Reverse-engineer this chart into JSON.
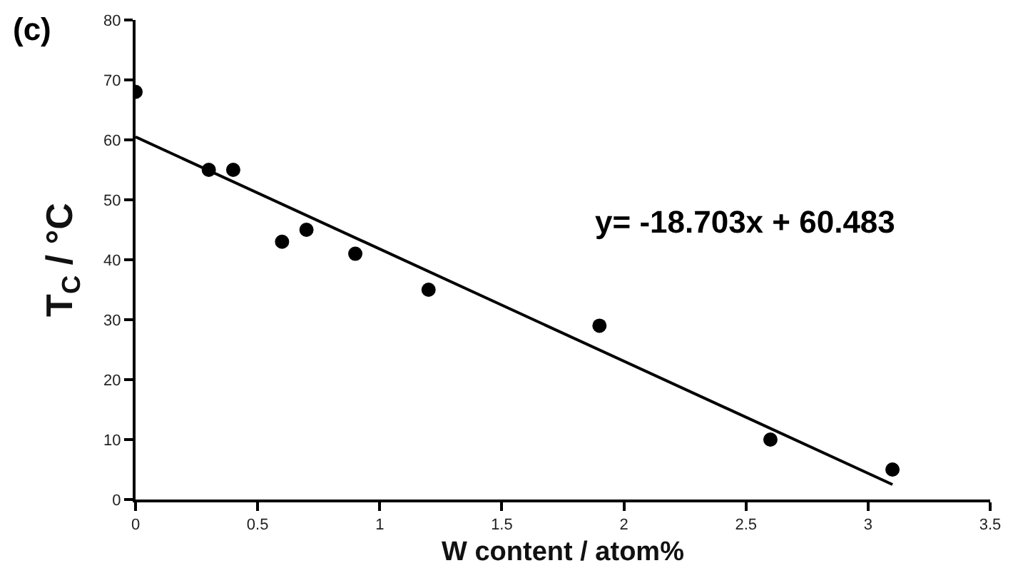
{
  "chart_data": {
    "type": "scatter",
    "xlabel": "W content / atom%",
    "ylabel": "T$_{C}$ / °C",
    "annotations": [
      "(c)",
      "y= -18.703x + 60.483"
    ],
    "series": [
      {
        "color": "#000000",
        "marker": "circle",
        "x": [
          0,
          0.3,
          0.4,
          0.6,
          0.7,
          0.9,
          1.2,
          1.9,
          2.6,
          3.1
        ],
        "values": [
          68,
          55,
          55,
          43,
          45,
          41,
          35,
          29,
          10,
          5
        ]
      },
      {
        "type": "line",
        "color": "#000000",
        "line_style": "solid",
        "x": [
          0,
          3.1
        ],
        "values": [
          60.5,
          2.5
        ]
      }
    ],
    "xlim": [
      0,
      3.5
    ],
    "xticks": [
      0,
      0.5,
      1,
      1.5,
      2,
      2.5,
      3,
      3.5
    ],
    "ylim": [
      0,
      80
    ],
    "yticks": [
      0,
      10,
      20,
      30,
      40,
      50,
      60,
      70,
      80
    ]
  }
}
